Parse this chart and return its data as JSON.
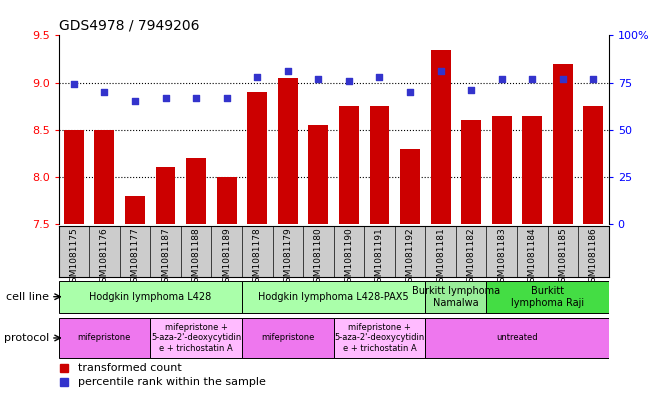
{
  "title": "GDS4978 / 7949206",
  "samples": [
    "GSM1081175",
    "GSM1081176",
    "GSM1081177",
    "GSM1081187",
    "GSM1081188",
    "GSM1081189",
    "GSM1081178",
    "GSM1081179",
    "GSM1081180",
    "GSM1081190",
    "GSM1081191",
    "GSM1081192",
    "GSM1081181",
    "GSM1081182",
    "GSM1081183",
    "GSM1081184",
    "GSM1081185",
    "GSM1081186"
  ],
  "bar_values": [
    8.5,
    8.5,
    7.8,
    8.1,
    8.2,
    8.0,
    8.9,
    9.05,
    8.55,
    8.75,
    8.75,
    8.3,
    9.35,
    8.6,
    8.65,
    8.65,
    9.2,
    8.75
  ],
  "dot_values": [
    74,
    70,
    65,
    67,
    67,
    67,
    78,
    81,
    77,
    76,
    78,
    70,
    81,
    71,
    77,
    77,
    77,
    77
  ],
  "ylim_left": [
    7.5,
    9.5
  ],
  "ylim_right": [
    0,
    100
  ],
  "yticks_left": [
    7.5,
    8.0,
    8.5,
    9.0,
    9.5
  ],
  "yticks_right": [
    0,
    25,
    50,
    75,
    100
  ],
  "ytick_labels_right": [
    "0",
    "25",
    "50",
    "75",
    "100%"
  ],
  "bar_color": "#cc0000",
  "dot_color": "#3333cc",
  "cell_line_groups": [
    {
      "label": "Hodgkin lymphoma L428",
      "start": 0,
      "end": 6,
      "color": "#aaffaa"
    },
    {
      "label": "Hodgkin lymphoma L428-PAX5",
      "start": 6,
      "end": 12,
      "color": "#aaffaa"
    },
    {
      "label": "Burkitt lymphoma\nNamalwa",
      "start": 12,
      "end": 14,
      "color": "#99ee99"
    },
    {
      "label": "Burkitt\nlymphoma Raji",
      "start": 14,
      "end": 18,
      "color": "#44dd44"
    }
  ],
  "protocol_groups": [
    {
      "label": "mifepristone",
      "start": 0,
      "end": 3,
      "color": "#ee77ee"
    },
    {
      "label": "mifepristone +\n5-aza-2'-deoxycytidin\ne + trichostatin A",
      "start": 3,
      "end": 6,
      "color": "#ffbbff"
    },
    {
      "label": "mifepristone",
      "start": 6,
      "end": 9,
      "color": "#ee77ee"
    },
    {
      "label": "mifepristone +\n5-aza-2'-deoxycytidin\ne + trichostatin A",
      "start": 9,
      "end": 12,
      "color": "#ffbbff"
    },
    {
      "label": "untreated",
      "start": 12,
      "end": 18,
      "color": "#ee77ee"
    }
  ],
  "left_label": "transformed count",
  "right_label": "percentile rank within the sample",
  "cell_line_row_label": "cell line",
  "protocol_row_label": "protocol",
  "grid_lines": [
    8.0,
    8.5,
    9.0
  ],
  "xlabel_bg_color": "#cccccc"
}
